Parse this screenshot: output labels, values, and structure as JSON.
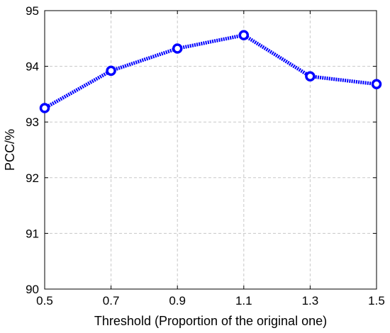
{
  "chart_data": {
    "type": "line",
    "xlabel": "Threshold (Proportion of the original one)",
    "ylabel": "PCC/%",
    "xlim": [
      0.5,
      1.5
    ],
    "ylim": [
      90,
      95
    ],
    "x_ticks": [
      "0.5",
      "0.7",
      "0.9",
      "1.1",
      "1.3",
      "1.5"
    ],
    "y_ticks": [
      "90",
      "91",
      "92",
      "93",
      "94",
      "95"
    ],
    "grid": true,
    "series": [
      {
        "x": [
          0.5,
          0.7,
          0.9,
          1.1,
          1.3,
          1.5
        ],
        "values": [
          93.25,
          93.92,
          94.32,
          94.56,
          93.82,
          93.68
        ],
        "color": "#0000ff",
        "line_style": "dotted",
        "marker": "circle"
      }
    ]
  }
}
